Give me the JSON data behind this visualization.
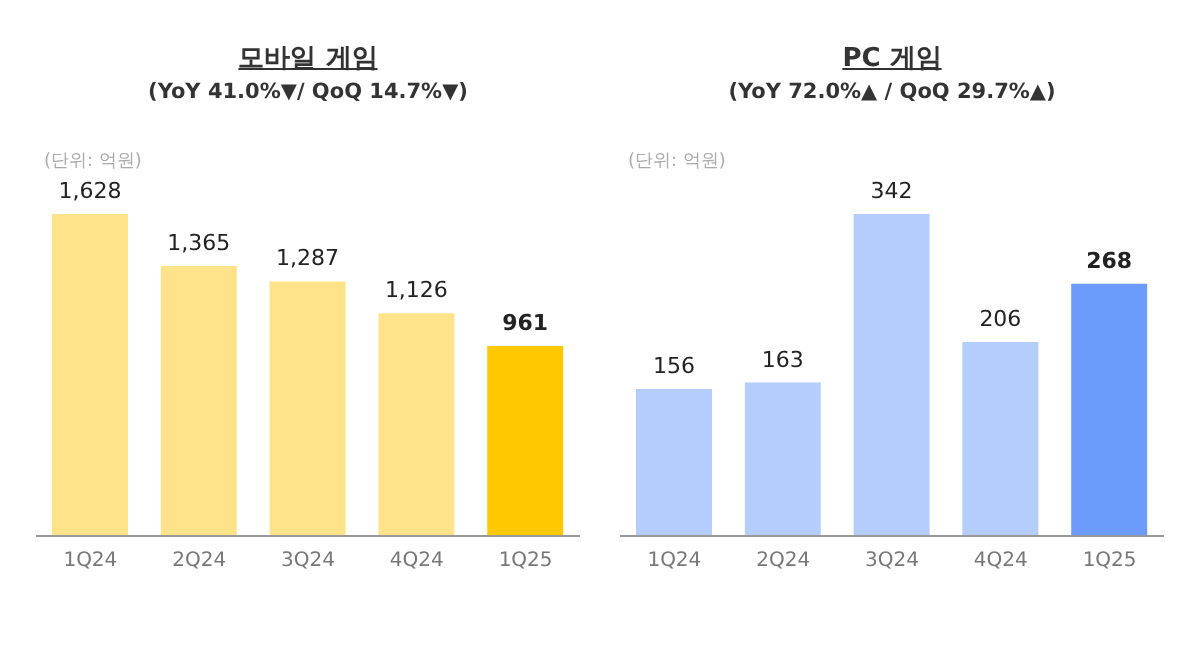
{
  "chart_data": [
    {
      "type": "bar",
      "title": "모바일 게임",
      "subtitle": "(YoY 41.0%▼/ QoQ 14.7%▼)",
      "annotations": [
        "(단위: 억원)"
      ],
      "categories": [
        "1Q24",
        "2Q24",
        "3Q24",
        "4Q24",
        "1Q25"
      ],
      "values": [
        1628,
        1365,
        1287,
        1126,
        961
      ],
      "value_labels": [
        "1,628",
        "1,365",
        "1,287",
        "1,126",
        "961"
      ],
      "colors": [
        "#ffe38a",
        "#ffe38a",
        "#ffe38a",
        "#ffe38a",
        "#ffc800"
      ],
      "grid": false,
      "legend": false
    },
    {
      "type": "bar",
      "title": "PC 게임",
      "subtitle": "(YoY 72.0%▲ / QoQ 29.7%▲)",
      "annotations": [
        "(단위: 억원)"
      ],
      "categories": [
        "1Q24",
        "2Q24",
        "3Q24",
        "4Q24",
        "1Q25"
      ],
      "values": [
        156,
        163,
        342,
        206,
        268
      ],
      "value_labels": [
        "156",
        "163",
        "342",
        "206",
        "268"
      ],
      "colors": [
        "#b5cdfc",
        "#b5cdfc",
        "#b5cdfc",
        "#b5cdfc",
        "#6d9bfc"
      ],
      "grid": false,
      "legend": false
    }
  ]
}
